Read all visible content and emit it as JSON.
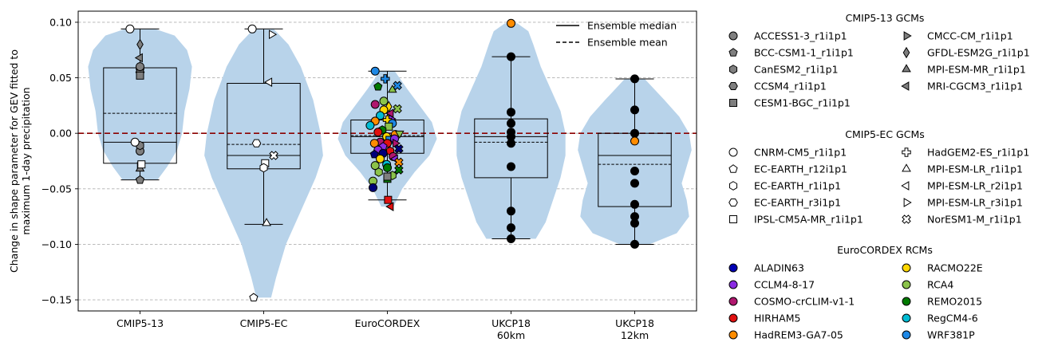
{
  "chart_data": {
    "type": "violin",
    "ylabel": [
      "Change in shape parameter for GEV fitted to",
      "maximum 1-day precipitation"
    ],
    "ylim": [
      -0.16,
      0.11
    ],
    "yticks": [
      -0.15,
      -0.1,
      -0.05,
      0.0,
      0.05,
      0.1
    ],
    "ytick_labels": [
      "−0.15",
      "−0.10",
      "−0.05",
      "0.00",
      "0.05",
      "0.10"
    ],
    "grid": "horizontal dashed",
    "reference_line": {
      "y": 0.0,
      "color": "#8b0000",
      "style": "dashed"
    },
    "categories": [
      {
        "label": [
          "CMIP5-13"
        ],
        "q1": -0.027,
        "median": -0.008,
        "mean": 0.018,
        "q3": 0.059,
        "whisker_low": -0.042,
        "whisker_high": 0.094,
        "violin": [
          [
            -0.042,
            0.14
          ],
          [
            -0.03,
            0.22
          ],
          [
            -0.015,
            0.3
          ],
          [
            0.0,
            0.34
          ],
          [
            0.02,
            0.36
          ],
          [
            0.04,
            0.4
          ],
          [
            0.06,
            0.42
          ],
          [
            0.075,
            0.38
          ],
          [
            0.088,
            0.28
          ],
          [
            0.094,
            0.12
          ]
        ]
      },
      {
        "label": [
          "CMIP5-EC"
        ],
        "q1": -0.032,
        "median": -0.02,
        "mean": -0.01,
        "q3": 0.045,
        "whisker_low": -0.082,
        "whisker_high": 0.094,
        "violin": [
          [
            -0.148,
            0.06
          ],
          [
            -0.13,
            0.1
          ],
          [
            -0.1,
            0.18
          ],
          [
            -0.07,
            0.3
          ],
          [
            -0.04,
            0.42
          ],
          [
            -0.02,
            0.48
          ],
          [
            0.0,
            0.46
          ],
          [
            0.03,
            0.4
          ],
          [
            0.06,
            0.3
          ],
          [
            0.08,
            0.2
          ],
          [
            0.094,
            0.08
          ]
        ]
      },
      {
        "label": [
          "EuroCORDEX"
        ],
        "q1": -0.018,
        "median": -0.003,
        "mean": -0.002,
        "q3": 0.012,
        "whisker_low": -0.06,
        "whisker_high": 0.056,
        "violin": [
          [
            -0.066,
            0.05
          ],
          [
            -0.05,
            0.12
          ],
          [
            -0.035,
            0.22
          ],
          [
            -0.02,
            0.34
          ],
          [
            -0.005,
            0.4
          ],
          [
            0.01,
            0.36
          ],
          [
            0.025,
            0.26
          ],
          [
            0.04,
            0.16
          ],
          [
            0.056,
            0.06
          ]
        ]
      },
      {
        "label": [
          "UKCP18",
          "60km"
        ],
        "q1": -0.04,
        "median": -0.003,
        "mean": -0.008,
        "q3": 0.013,
        "whisker_low": -0.095,
        "whisker_high": 0.069,
        "violin": [
          [
            -0.095,
            0.2
          ],
          [
            -0.08,
            0.28
          ],
          [
            -0.06,
            0.34
          ],
          [
            -0.04,
            0.4
          ],
          [
            -0.02,
            0.44
          ],
          [
            0.0,
            0.44
          ],
          [
            0.02,
            0.4
          ],
          [
            0.04,
            0.32
          ],
          [
            0.06,
            0.24
          ],
          [
            0.08,
            0.18
          ],
          [
            0.092,
            0.14
          ],
          [
            0.099,
            0.05
          ]
        ]
      },
      {
        "label": [
          "UKCP18",
          "12km"
        ],
        "q1": -0.066,
        "median": -0.02,
        "mean": -0.028,
        "q3": 0.0,
        "whisker_low": -0.1,
        "whisker_high": 0.049,
        "violin": [
          [
            -0.1,
            0.12
          ],
          [
            -0.09,
            0.34
          ],
          [
            -0.075,
            0.44
          ],
          [
            -0.06,
            0.42
          ],
          [
            -0.045,
            0.38
          ],
          [
            -0.03,
            0.42
          ],
          [
            -0.015,
            0.46
          ],
          [
            0.0,
            0.44
          ],
          [
            0.015,
            0.36
          ],
          [
            0.03,
            0.24
          ],
          [
            0.049,
            0.08
          ]
        ]
      }
    ],
    "points": {
      "cmip513": [
        {
          "m": "circle",
          "c": "#7f7f7f",
          "y": -0.016,
          "d": 0
        },
        {
          "m": "pentagon",
          "c": "#7f7f7f",
          "y": 0.057,
          "d": 0
        },
        {
          "m": "hexagon",
          "c": "#7f7f7f",
          "y": -0.011,
          "d": 0
        },
        {
          "m": "hexagon2",
          "c": "#7f7f7f",
          "y": 0.055,
          "d": 0
        },
        {
          "m": "square",
          "c": "#7f7f7f",
          "y": 0.052,
          "d": 0
        },
        {
          "m": "tri_right",
          "c": "#7f7f7f",
          "y": -0.03,
          "d": -0.01
        },
        {
          "m": "diamond",
          "c": "#7f7f7f",
          "y": 0.08,
          "d": 0
        },
        {
          "m": "tri_up",
          "c": "#7f7f7f",
          "y": -0.032,
          "d": 0
        },
        {
          "m": "tri_left",
          "c": "#7f7f7f",
          "y": 0.068,
          "d": 0
        },
        {
          "m": "circle",
          "c": "#ffffff",
          "y": 0.094,
          "d": -0.28
        },
        {
          "m": "circle",
          "c": "#ffffff",
          "y": -0.008,
          "d": -0.14
        },
        {
          "m": "square",
          "c": "#ffffff",
          "y": -0.028,
          "d": 0.04
        },
        {
          "m": "pentagon",
          "c": "#7f7f7f",
          "y": -0.042,
          "d": 0
        },
        {
          "m": "circle",
          "c": "#7f7f7f",
          "y": 0.06,
          "d": 0
        }
      ],
      "cmip5ec": [
        {
          "m": "circle",
          "c": "#ffffff",
          "y": 0.094,
          "d": -0.32
        },
        {
          "m": "tri_right",
          "c": "#ffffff",
          "y": 0.089,
          "d": 0.22
        },
        {
          "m": "tri_left",
          "c": "#ffffff",
          "y": 0.046,
          "d": 0.16
        },
        {
          "m": "hexagon2",
          "c": "#ffffff",
          "y": -0.009,
          "d": -0.2
        },
        {
          "m": "cross_x",
          "c": "#ffffff",
          "y": -0.02,
          "d": 0.28
        },
        {
          "m": "square",
          "c": "#ffffff",
          "y": -0.027,
          "d": 0.04
        },
        {
          "m": "hexagon",
          "c": "#ffffff",
          "y": -0.031,
          "d": 0
        },
        {
          "m": "tri_up",
          "c": "#ffffff",
          "y": -0.081,
          "d": 0.08
        },
        {
          "m": "pentagon",
          "c": "#ffffff",
          "y": -0.148,
          "d": -0.28
        }
      ],
      "eurocordex": [
        {
          "m": "circle",
          "c": "#1e88e5",
          "y": 0.056,
          "d": -0.34
        },
        {
          "m": "plus",
          "c": "#1e88e5",
          "y": 0.049,
          "d": -0.06
        },
        {
          "m": "cross_x",
          "c": "#1e88e5",
          "y": 0.043,
          "d": 0.28
        },
        {
          "m": "tri_up",
          "c": "#8bc34a",
          "y": 0.039,
          "d": 0.14
        },
        {
          "m": "pentagon",
          "c": "#007a00",
          "y": 0.042,
          "d": -0.26
        },
        {
          "m": "circle",
          "c": "#8bc34a",
          "y": 0.029,
          "d": -0.1
        },
        {
          "m": "circle",
          "c": "#b0176e",
          "y": 0.026,
          "d": -0.34
        },
        {
          "m": "diamond",
          "c": "#ffd700",
          "y": 0.024,
          "d": 0.04
        },
        {
          "m": "cross_x",
          "c": "#8bc34a",
          "y": 0.022,
          "d": 0.28
        },
        {
          "m": "circle",
          "c": "#ffd700",
          "y": 0.021,
          "d": -0.1
        },
        {
          "m": "tri_left",
          "c": "#b0176e",
          "y": 0.018,
          "d": 0.1
        },
        {
          "m": "circle",
          "c": "#00bcd4",
          "y": 0.016,
          "d": -0.2
        },
        {
          "m": "circle",
          "c": "#ff8c00",
          "y": 0.011,
          "d": -0.34
        },
        {
          "m": "tri_right",
          "c": "#8a2be2",
          "y": 0.013,
          "d": 0.1
        },
        {
          "m": "plus",
          "c": "#ffd700",
          "y": 0.012,
          "d": 0.0
        },
        {
          "m": "circle",
          "c": "#1e88e5",
          "y": 0.009,
          "d": 0.14
        },
        {
          "m": "circle",
          "c": "#00bcd4",
          "y": 0.007,
          "d": -0.48
        },
        {
          "m": "square",
          "c": "#8bc34a",
          "y": 0.006,
          "d": 0.04
        },
        {
          "m": "hexagon",
          "c": "#007a00",
          "y": 0.003,
          "d": -0.14
        },
        {
          "m": "circle",
          "c": "#e01010",
          "y": 0.001,
          "d": -0.26
        },
        {
          "m": "circle",
          "c": "#ff8c00",
          "y": -0.001,
          "d": 0.22
        },
        {
          "m": "tri_down",
          "c": "#8bc34a",
          "y": 0.0,
          "d": 0.34
        },
        {
          "m": "circle",
          "c": "#ffd700",
          "y": -0.003,
          "d": -0.02
        },
        {
          "m": "square",
          "c": "#1e88e5",
          "y": -0.006,
          "d": 0.06
        },
        {
          "m": "circle",
          "c": "#8a2be2",
          "y": -0.005,
          "d": 0.2
        },
        {
          "m": "circle",
          "c": "#b0176e",
          "y": -0.008,
          "d": -0.2
        },
        {
          "m": "circle",
          "c": "#e01010",
          "y": -0.009,
          "d": 0.0
        },
        {
          "m": "circle",
          "c": "#ff8c00",
          "y": -0.009,
          "d": -0.36
        },
        {
          "m": "tri_right",
          "c": "#b0176e",
          "y": -0.009,
          "d": 0.22
        },
        {
          "m": "pentagon",
          "c": "#8a2be2",
          "y": -0.012,
          "d": -0.12
        },
        {
          "m": "cross_x",
          "c": "#00007a",
          "y": -0.014,
          "d": 0.32
        },
        {
          "m": "circle",
          "c": "#8a2be2",
          "y": -0.015,
          "d": -0.26
        },
        {
          "m": "hexagon",
          "c": "#e01010",
          "y": -0.016,
          "d": 0.08
        },
        {
          "m": "circle",
          "c": "#00007a",
          "y": -0.018,
          "d": -0.12
        },
        {
          "m": "pentagon",
          "c": "#00007a",
          "y": -0.019,
          "d": -0.36
        },
        {
          "m": "circle",
          "c": "#b0176e",
          "y": -0.021,
          "d": 0.16
        },
        {
          "m": "circle",
          "c": "#ffd700",
          "y": -0.023,
          "d": -0.2
        },
        {
          "m": "tri_left",
          "c": "#8a2be2",
          "y": -0.023,
          "d": 0.22
        },
        {
          "m": "cross_x",
          "c": "#ff8c00",
          "y": -0.026,
          "d": 0.32
        },
        {
          "m": "circle",
          "c": "#00bcd4",
          "y": -0.028,
          "d": -0.02
        },
        {
          "m": "circle",
          "c": "#8bc34a",
          "y": -0.029,
          "d": -0.34
        },
        {
          "m": "circle",
          "c": "#007a00",
          "y": -0.031,
          "d": 0.0
        },
        {
          "m": "cross_x",
          "c": "#007a00",
          "y": -0.033,
          "d": 0.32
        },
        {
          "m": "hexagon",
          "c": "#8bc34a",
          "y": -0.035,
          "d": -0.24
        },
        {
          "m": "hexagon",
          "c": "#8bc34a",
          "y": -0.038,
          "d": 0.14
        },
        {
          "m": "square",
          "c": "#007a00",
          "y": -0.041,
          "d": 0.0
        },
        {
          "m": "square",
          "c": "#7f7f7f",
          "y": -0.039,
          "d": 0.0
        },
        {
          "m": "circle",
          "c": "#8bc34a",
          "y": -0.043,
          "d": -0.4
        },
        {
          "m": "circle",
          "c": "#00007a",
          "y": -0.049,
          "d": -0.4
        },
        {
          "m": "square",
          "c": "#e01010",
          "y": -0.06,
          "d": 0.02
        },
        {
          "m": "tri_left",
          "c": "#e01010",
          "y": -0.066,
          "d": 0.1
        }
      ],
      "ukcp60": [
        {
          "m": "circle",
          "c": "#ff8c00",
          "y": 0.099,
          "d": 0
        },
        {
          "m": "circle",
          "c": "#000000",
          "y": 0.069,
          "d": 0
        },
        {
          "m": "circle",
          "c": "#000000",
          "y": 0.019,
          "d": 0
        },
        {
          "m": "circle",
          "c": "#000000",
          "y": 0.009,
          "d": 0
        },
        {
          "m": "circle",
          "c": "#000000",
          "y": 0.001,
          "d": 0
        },
        {
          "m": "circle",
          "c": "#000000",
          "y": -0.003,
          "d": 0
        },
        {
          "m": "circle",
          "c": "#000000",
          "y": -0.009,
          "d": 0
        },
        {
          "m": "circle",
          "c": "#000000",
          "y": -0.03,
          "d": 0
        },
        {
          "m": "circle",
          "c": "#000000",
          "y": -0.07,
          "d": 0
        },
        {
          "m": "circle",
          "c": "#000000",
          "y": -0.085,
          "d": 0
        },
        {
          "m": "circle",
          "c": "#000000",
          "y": -0.095,
          "d": 0
        }
      ],
      "ukcp12": [
        {
          "m": "circle",
          "c": "#000000",
          "y": 0.049,
          "d": 0
        },
        {
          "m": "circle",
          "c": "#000000",
          "y": 0.021,
          "d": 0
        },
        {
          "m": "circle",
          "c": "#000000",
          "y": 0.0,
          "d": 0
        },
        {
          "m": "circle",
          "c": "#ff8c00",
          "y": -0.007,
          "d": 0
        },
        {
          "m": "circle",
          "c": "#000000",
          "y": -0.034,
          "d": 0
        },
        {
          "m": "circle",
          "c": "#000000",
          "y": -0.045,
          "d": 0
        },
        {
          "m": "circle",
          "c": "#000000",
          "y": -0.064,
          "d": 0
        },
        {
          "m": "circle",
          "c": "#000000",
          "y": -0.075,
          "d": 0
        },
        {
          "m": "circle",
          "c": "#000000",
          "y": -0.081,
          "d": 0
        },
        {
          "m": "circle",
          "c": "#000000",
          "y": -0.1,
          "d": 0
        }
      ]
    },
    "line_legend": [
      {
        "label": "Ensemble median",
        "style": "solid"
      },
      {
        "label": "Ensemble mean",
        "style": "dashed"
      }
    ],
    "legend_groups": [
      {
        "title": "CMIP5-13 GCMs",
        "fill": "#7f7f7f",
        "col1": [
          {
            "m": "circle",
            "label": "ACCESS1-3_r1i1p1"
          },
          {
            "m": "pentagon",
            "label": "BCC-CSM1-1_r1i1p1"
          },
          {
            "m": "hexagon",
            "label": "CanESM2_r1i1p1"
          },
          {
            "m": "hexagon2",
            "label": "CCSM4_r1i1p1"
          },
          {
            "m": "square",
            "label": "CESM1-BGC_r1i1p1"
          }
        ],
        "col2": [
          {
            "m": "tri_right",
            "label": "CMCC-CM_r1i1p1"
          },
          {
            "m": "diamond",
            "label": "GFDL-ESM2G_r1i1p1"
          },
          {
            "m": "tri_up",
            "label": "MPI-ESM-MR_r1i1p1"
          },
          {
            "m": "tri_left",
            "label": "MRI-CGCM3_r1i1p1"
          }
        ]
      },
      {
        "title": "CMIP5-EC GCMs",
        "fill": "#ffffff",
        "col1": [
          {
            "m": "circle",
            "label": "CNRM-CM5_r1i1p1"
          },
          {
            "m": "pentagon",
            "label": "EC-EARTH_r12i1p1"
          },
          {
            "m": "hexagon",
            "label": "EC-EARTH_r1i1p1"
          },
          {
            "m": "hexagon2",
            "label": "EC-EARTH_r3i1p1"
          },
          {
            "m": "square",
            "label": "IPSL-CM5A-MR_r1i1p1"
          }
        ],
        "col2": [
          {
            "m": "plus",
            "label": "HadGEM2-ES_r1i1p1"
          },
          {
            "m": "tri_up",
            "label": "MPI-ESM-LR_r1i1p1"
          },
          {
            "m": "tri_left",
            "label": "MPI-ESM-LR_r2i1p1"
          },
          {
            "m": "tri_right",
            "label": "MPI-ESM-LR_r3i1p1"
          },
          {
            "m": "cross_x",
            "label": "NorESM1-M_r1i1p1"
          }
        ]
      },
      {
        "title": "EuroCORDEX RCMs",
        "fill": null,
        "col1": [
          {
            "m": "circle",
            "c": "#0000b3",
            "label": "ALADIN63"
          },
          {
            "m": "circle",
            "c": "#8a2be2",
            "label": "CCLM4-8-17"
          },
          {
            "m": "circle",
            "c": "#b0176e",
            "label": "COSMO-crCLIM-v1-1"
          },
          {
            "m": "circle",
            "c": "#e01010",
            "label": "HIRHAM5"
          },
          {
            "m": "circle",
            "c": "#ff8c00",
            "label": "HadREM3-GA7-05"
          }
        ],
        "col2": [
          {
            "m": "circle",
            "c": "#ffd700",
            "label": "RACMO22E"
          },
          {
            "m": "circle",
            "c": "#8bc34a",
            "label": "RCA4"
          },
          {
            "m": "circle",
            "c": "#007a00",
            "label": "REMO2015"
          },
          {
            "m": "circle",
            "c": "#00bcd4",
            "label": "RegCM4-6"
          },
          {
            "m": "circle",
            "c": "#1e88e5",
            "label": "WRF381P"
          }
        ]
      }
    ],
    "colors": {
      "violin": "#b8d3ea",
      "reference": "#8b0000",
      "grid": "#b0b0b0"
    }
  }
}
